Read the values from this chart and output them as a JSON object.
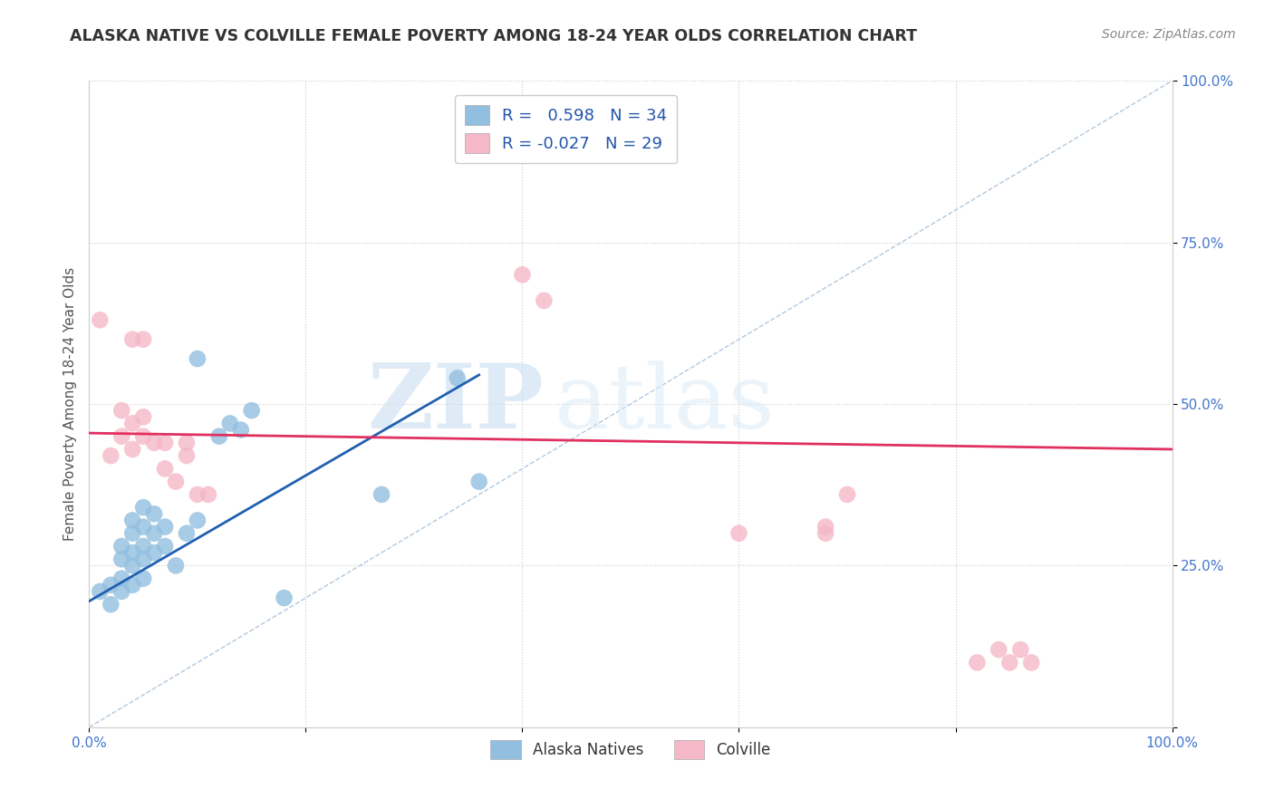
{
  "title": "ALASKA NATIVE VS COLVILLE FEMALE POVERTY AMONG 18-24 YEAR OLDS CORRELATION CHART",
  "source": "Source: ZipAtlas.com",
  "ylabel": "Female Poverty Among 18-24 Year Olds",
  "xlim": [
    0.0,
    1.0
  ],
  "ylim": [
    0.0,
    1.0
  ],
  "watermark_zip": "ZIP",
  "watermark_atlas": "atlas",
  "blue_R": 0.598,
  "blue_N": 34,
  "pink_R": -0.027,
  "pink_N": 29,
  "blue_color": "#92bfe0",
  "pink_color": "#f5b8c8",
  "blue_line_color": "#2060b0",
  "pink_line_color": "#e03060",
  "diag_line_color": "#b0c8e0",
  "blue_points_x": [
    0.01,
    0.02,
    0.02,
    0.03,
    0.03,
    0.03,
    0.03,
    0.04,
    0.04,
    0.04,
    0.04,
    0.04,
    0.05,
    0.05,
    0.05,
    0.05,
    0.05,
    0.06,
    0.06,
    0.06,
    0.07,
    0.07,
    0.08,
    0.09,
    0.1,
    0.1,
    0.12,
    0.13,
    0.14,
    0.15,
    0.18,
    0.27,
    0.34,
    0.36
  ],
  "blue_points_y": [
    0.21,
    0.19,
    0.22,
    0.21,
    0.23,
    0.26,
    0.28,
    0.22,
    0.25,
    0.27,
    0.3,
    0.32,
    0.23,
    0.26,
    0.28,
    0.31,
    0.34,
    0.27,
    0.3,
    0.33,
    0.28,
    0.31,
    0.25,
    0.3,
    0.32,
    0.57,
    0.45,
    0.47,
    0.46,
    0.49,
    0.2,
    0.36,
    0.54,
    0.38
  ],
  "pink_points_x": [
    0.01,
    0.02,
    0.03,
    0.03,
    0.04,
    0.04,
    0.04,
    0.05,
    0.05,
    0.05,
    0.06,
    0.07,
    0.07,
    0.08,
    0.09,
    0.09,
    0.1,
    0.11,
    0.4,
    0.42,
    0.6,
    0.68,
    0.68,
    0.7,
    0.82,
    0.84,
    0.85,
    0.86,
    0.87
  ],
  "pink_points_y": [
    0.63,
    0.42,
    0.45,
    0.49,
    0.43,
    0.47,
    0.6,
    0.45,
    0.48,
    0.6,
    0.44,
    0.4,
    0.44,
    0.38,
    0.42,
    0.44,
    0.36,
    0.36,
    0.7,
    0.66,
    0.3,
    0.3,
    0.31,
    0.36,
    0.1,
    0.12,
    0.1,
    0.12,
    0.1
  ],
  "blue_line_x": [
    0.0,
    0.36
  ],
  "pink_line_x": [
    0.0,
    1.0
  ],
  "blue_line_y_start": 0.195,
  "blue_line_y_end": 0.545,
  "pink_line_y_start": 0.455,
  "pink_line_y_end": 0.43
}
